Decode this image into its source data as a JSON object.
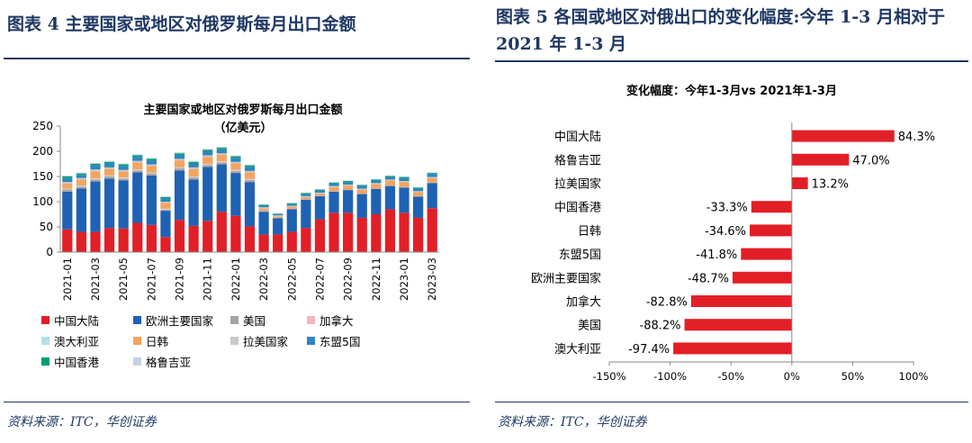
{
  "left_panel": {
    "title": "图表 4   主要国家或地区对俄罗斯每月出口金额",
    "source": "资料来源：ITC，华创证券"
  },
  "right_panel": {
    "title": "图表 5   各国或地区对俄出口的变化幅度:今年 1-3 月相对于 2021 年 1-3 月",
    "source": "资料来源：ITC，华创证券"
  },
  "chart_data": [
    {
      "type": "bar",
      "stacked": true,
      "title": "主要国家或地区对俄罗斯每月出口金额",
      "subtitle": "（亿美元）",
      "xlabel": "",
      "ylabel": "",
      "ylim": [
        0,
        250
      ],
      "yticks": [
        0,
        50,
        100,
        150,
        200,
        250
      ],
      "categories": [
        "2021-01",
        "2021-02",
        "2021-03",
        "2021-04",
        "2021-05",
        "2021-06",
        "2021-07",
        "2021-08",
        "2021-09",
        "2021-10",
        "2021-11",
        "2021-12",
        "2022-01",
        "2022-02",
        "2022-03",
        "2022-04",
        "2022-05",
        "2022-06",
        "2022-07",
        "2022-08",
        "2022-09",
        "2022-10",
        "2022-11",
        "2022-12",
        "2023-01",
        "2023-02",
        "2023-03"
      ],
      "tick_labels": [
        "2021-01",
        "2021-03",
        "2021-05",
        "2021-07",
        "2021-09",
        "2021-11",
        "2022-01",
        "2022-03",
        "2022-05",
        "2022-07",
        "2022-09",
        "2022-11",
        "2023-01",
        "2023-03"
      ],
      "legend_position": "bottom",
      "series": [
        {
          "name": "中国大陆",
          "color": "#e21f26",
          "values": [
            45,
            40,
            40,
            48,
            47,
            58,
            54,
            30,
            64,
            52,
            62,
            80,
            72,
            51,
            35,
            35,
            40,
            48,
            65,
            78,
            78,
            68,
            75,
            85,
            78,
            68,
            87
          ]
        },
        {
          "name": "欧洲主要国家",
          "color": "#1f62b3",
          "values": [
            75,
            86,
            100,
            98,
            95,
            100,
            98,
            52,
            98,
            92,
            107,
            94,
            85,
            88,
            45,
            32,
            45,
            56,
            46,
            42,
            45,
            47,
            50,
            46,
            50,
            42,
            50
          ]
        },
        {
          "name": "美国",
          "color": "#a6a6a6",
          "values": [
            4,
            4,
            4,
            4,
            4,
            4,
            4,
            2,
            4,
            4,
            4,
            4,
            4,
            4,
            2,
            1,
            1,
            1,
            1,
            1,
            1,
            1,
            1,
            1,
            1,
            1,
            1
          ]
        },
        {
          "name": "加拿大",
          "color": "#f4b6b6",
          "values": [
            1,
            1,
            1,
            1,
            1,
            1,
            1,
            1,
            1,
            1,
            1,
            1,
            1,
            1,
            1,
            0,
            0,
            0,
            0,
            0,
            0,
            0,
            0,
            0,
            0,
            0,
            0
          ]
        },
        {
          "name": "澳大利亚",
          "color": "#b7dde8",
          "values": [
            1,
            1,
            1,
            1,
            1,
            1,
            1,
            1,
            1,
            1,
            1,
            1,
            1,
            1,
            0,
            0,
            0,
            0,
            0,
            0,
            0,
            0,
            0,
            0,
            0,
            0,
            0
          ]
        },
        {
          "name": "日韩",
          "color": "#f4a460",
          "values": [
            10,
            12,
            14,
            13,
            12,
            14,
            13,
            12,
            14,
            15,
            14,
            13,
            13,
            13,
            4,
            3,
            4,
            4,
            4,
            8,
            8,
            8,
            9,
            10,
            10,
            8,
            9
          ]
        },
        {
          "name": "拉美国家",
          "color": "#c9c9c9",
          "values": [
            3,
            3,
            4,
            3,
            3,
            3,
            3,
            2,
            3,
            3,
            3,
            3,
            3,
            3,
            2,
            2,
            2,
            2,
            2,
            2,
            2,
            2,
            2,
            2,
            2,
            2,
            2
          ]
        },
        {
          "name": "东盟5国",
          "color": "#2e86c1",
          "values": [
            8,
            6,
            8,
            8,
            8,
            8,
            8,
            6,
            8,
            8,
            8,
            8,
            8,
            8,
            3,
            2,
            3,
            4,
            4,
            5,
            5,
            5,
            5,
            5,
            6,
            5,
            6
          ]
        },
        {
          "name": "中国香港",
          "color": "#009e73",
          "values": [
            3,
            3,
            3,
            3,
            3,
            3,
            3,
            3,
            3,
            3,
            3,
            3,
            3,
            3,
            2,
            1,
            2,
            2,
            2,
            2,
            2,
            2,
            2,
            2,
            2,
            2,
            2
          ]
        },
        {
          "name": "格鲁吉亚",
          "color": "#c7d2e8",
          "values": [
            2,
            2,
            2,
            2,
            2,
            2,
            2,
            2,
            2,
            2,
            2,
            2,
            2,
            2,
            1,
            1,
            1,
            1,
            1,
            1,
            1,
            1,
            1,
            1,
            1,
            1,
            1
          ]
        }
      ]
    },
    {
      "type": "bar",
      "orientation": "horizontal",
      "title": "变化幅度：今年1-3月vs 2021年1-3月",
      "xlabel": "",
      "ylabel": "",
      "xlim": [
        -150,
        100
      ],
      "xticks": [
        "-150%",
        "-100%",
        "-50%",
        "0%",
        "50%",
        "100%"
      ],
      "xtick_values": [
        -150,
        -100,
        -50,
        0,
        50,
        100
      ],
      "color": "#e21f26",
      "categories": [
        "中国大陆",
        "格鲁吉亚",
        "拉美国家",
        "中国香港",
        "日韩",
        "东盟5国",
        "欧洲主要国家",
        "加拿大",
        "美国",
        "澳大利亚"
      ],
      "values": [
        84.3,
        47.0,
        13.2,
        -33.3,
        -34.6,
        -41.8,
        -48.7,
        -82.8,
        -88.2,
        -97.4
      ],
      "data_labels": [
        "84.3%",
        "47.0%",
        "13.2%",
        "-33.3%",
        "-34.6%",
        "-41.8%",
        "-48.7%",
        "-82.8%",
        "-88.2%",
        "-97.4%"
      ]
    }
  ]
}
